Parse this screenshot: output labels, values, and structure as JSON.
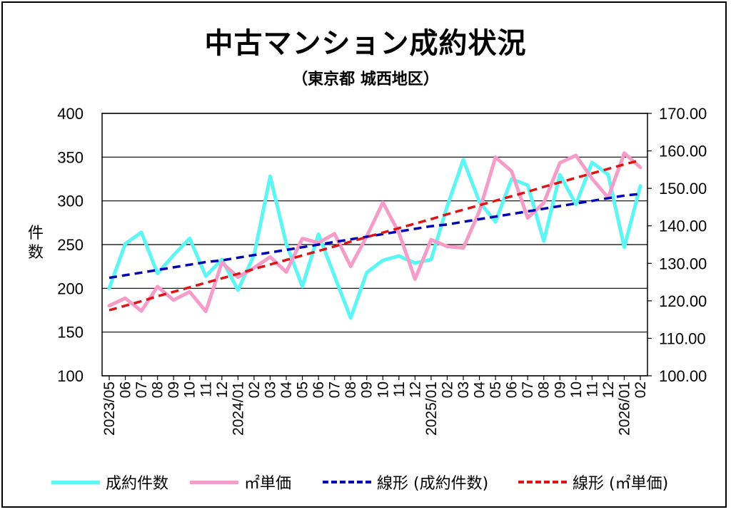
{
  "title": "中古マンション成約状況",
  "subtitle": "（東京都 城西地区）",
  "y_axis_label": "件数",
  "chart_data": {
    "type": "line",
    "x": [
      "2023/05",
      "06",
      "07",
      "08",
      "09",
      "10",
      "11",
      "12",
      "2024/01",
      "02",
      "03",
      "04",
      "05",
      "06",
      "07",
      "08",
      "09",
      "10",
      "11",
      "12",
      "2025/01",
      "02",
      "03",
      "04",
      "05",
      "06",
      "07",
      "08",
      "09",
      "10",
      "11",
      "12",
      "2026/01",
      "02"
    ],
    "x_tick_labels": [
      "2023/05",
      "06",
      "07",
      "08",
      "09",
      "10",
      "11",
      "12",
      "2024/01",
      "02",
      "03",
      "04",
      "05",
      "06",
      "07",
      "08",
      "09",
      "10",
      "11",
      "12",
      "2025/01",
      "02",
      "03",
      "04",
      "05",
      "06",
      "07",
      "08",
      "09",
      "10",
      "11",
      "12",
      "2026/01",
      "02"
    ],
    "y_left": {
      "min": 100,
      "max": 400,
      "ticks": [
        "400",
        "350",
        "300",
        "250",
        "200",
        "150",
        "100"
      ]
    },
    "y_right": {
      "min": 100,
      "max": 170,
      "ticks": [
        "170.00",
        "160.00",
        "150.00",
        "140.00",
        "130.00",
        "120.00",
        "110.00",
        "100.00"
      ]
    },
    "grid": true,
    "legend_position": "bottom",
    "series": [
      {
        "name": "成約件数",
        "axis": "left",
        "style": "solid",
        "color": "#5ef5f5",
        "values": [
          200,
          251,
          264,
          217,
          238,
          257,
          214,
          233,
          198,
          238,
          328,
          251,
          202,
          262,
          214,
          166,
          218,
          232,
          237,
          229,
          233,
          294,
          347,
          299,
          276,
          325,
          318,
          254,
          330,
          296,
          344,
          330,
          247,
          317
        ]
      },
      {
        "name": "㎡単価",
        "axis": "right",
        "style": "solid",
        "color": "#f59cc8",
        "values": [
          118.7,
          120.7,
          117.3,
          123.8,
          120.2,
          122.4,
          117.2,
          130.2,
          126.3,
          128.8,
          131.7,
          127.7,
          136.6,
          135.5,
          137.9,
          129.2,
          137.2,
          146.2,
          138.2,
          125.8,
          136.3,
          134.5,
          134.1,
          143.9,
          158.3,
          154.6,
          142.1,
          146.1,
          156.8,
          158.8,
          152.6,
          147.5,
          159.4,
          155.6
        ]
      },
      {
        "name": "線形 (成約件数)",
        "axis": "left",
        "style": "dashed",
        "color": "#0000b4",
        "values": [
          212,
          215,
          218,
          221,
          224,
          227,
          230,
          232,
          235,
          238,
          241,
          244,
          247,
          250,
          253,
          256,
          259,
          262,
          265,
          268,
          271,
          273,
          276,
          279,
          282,
          285,
          288,
          291,
          294,
          297,
          300,
          303,
          306,
          308
        ]
      },
      {
        "name": "線形 (㎡単価)",
        "axis": "right",
        "style": "dashed",
        "color": "#dc1414",
        "values": [
          117.5,
          118.7,
          119.9,
          121.2,
          122.4,
          123.6,
          124.8,
          126.0,
          127.2,
          128.5,
          129.7,
          130.9,
          132.1,
          133.3,
          134.5,
          135.8,
          137.0,
          138.2,
          139.4,
          140.6,
          141.8,
          143.1,
          144.3,
          145.5,
          146.7,
          147.9,
          149.1,
          150.4,
          151.6,
          152.8,
          154.0,
          155.2,
          156.4,
          157.5
        ]
      }
    ]
  }
}
